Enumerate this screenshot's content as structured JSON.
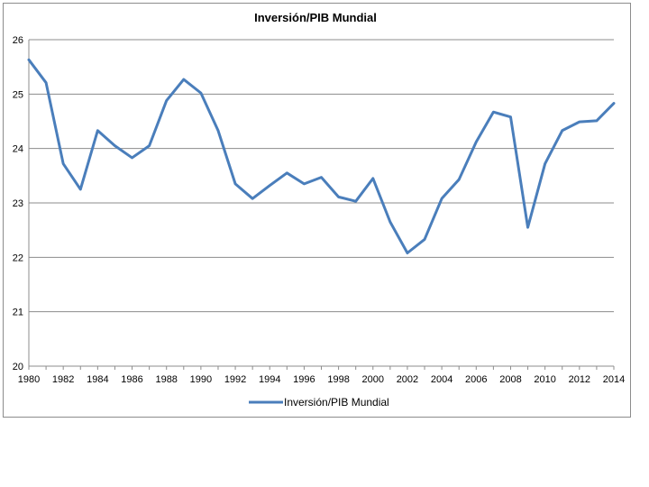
{
  "chart_data": {
    "type": "line",
    "title": "Inversión/PIB Mundial",
    "xlabel": "",
    "ylabel": "",
    "xlim": [
      1980,
      2014
    ],
    "ylim": [
      20,
      26
    ],
    "y_ticks": [
      20,
      21,
      22,
      23,
      24,
      25,
      26
    ],
    "x_ticks": [
      1980,
      1982,
      1984,
      1986,
      1988,
      1990,
      1992,
      1994,
      1996,
      1998,
      2000,
      2002,
      2004,
      2006,
      2008,
      2010,
      2012,
      2014
    ],
    "grid": "horizontal",
    "legend_position": "bottom",
    "line_color": "#4a7ebb",
    "series": [
      {
        "name": "Inversión/PIB Mundial",
        "x": [
          1980,
          1981,
          1982,
          1983,
          1984,
          1985,
          1986,
          1987,
          1988,
          1989,
          1990,
          1991,
          1992,
          1993,
          1994,
          1995,
          1996,
          1997,
          1998,
          1999,
          2000,
          2001,
          2002,
          2003,
          2004,
          2005,
          2006,
          2007,
          2008,
          2009,
          2010,
          2011,
          2012,
          2013,
          2014
        ],
        "values": [
          25.63,
          25.21,
          23.72,
          23.25,
          24.33,
          24.05,
          23.83,
          24.05,
          24.88,
          25.27,
          25.02,
          24.33,
          23.35,
          23.08,
          23.32,
          23.55,
          23.35,
          23.47,
          23.11,
          23.03,
          23.45,
          22.65,
          22.08,
          22.33,
          23.08,
          23.43,
          24.12,
          24.67,
          24.58,
          22.55,
          23.72,
          24.33,
          24.49,
          24.51,
          24.83
        ]
      }
    ]
  }
}
